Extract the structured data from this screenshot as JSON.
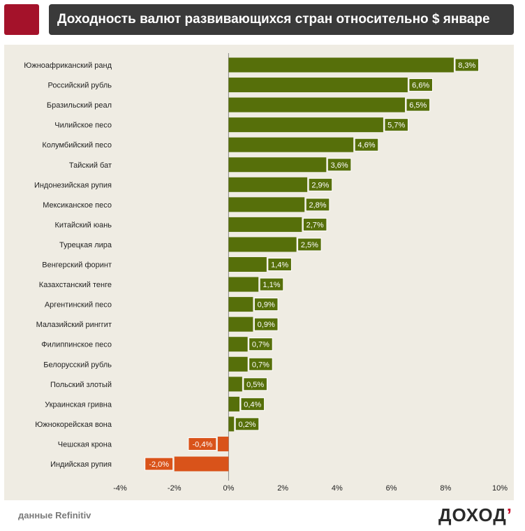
{
  "header": {
    "title": "Доходность валют развивающихся стран относительно $ январе"
  },
  "footer": {
    "source": "данные Refinitiv",
    "logo_main": "ДОХОД",
    "logo_accent": "’"
  },
  "colors": {
    "brand": "#a4122a",
    "title_bg": "#3a3a3a",
    "panel_bg": "#efece3",
    "positive": "#566f0a",
    "negative": "#d9531a"
  },
  "chart_data": {
    "type": "bar",
    "orientation": "horizontal",
    "categories": [
      "Южноафриканский  ранд",
      "Российский рубль",
      "Бразильский реал",
      "Чилийское песо",
      "Колумбийский песо",
      "Тайский бат",
      "Индонезийская рупия",
      "Мексиканское песо",
      "Китайский юань",
      "Турецкая лира",
      "Венгерский форинт",
      "Казахстанский тенге",
      "Аргентинский песо",
      "Малазийский ринггит",
      "Филиппинское песо",
      "Белорусский рубль",
      "Польский злотый",
      "Украинская гривна",
      "Южнокорейская вона",
      "Чешская крона",
      "Индийская рупия"
    ],
    "values": [
      8.3,
      6.6,
      6.5,
      5.7,
      4.6,
      3.6,
      2.9,
      2.8,
      2.7,
      2.5,
      1.4,
      1.1,
      0.9,
      0.9,
      0.7,
      0.7,
      0.5,
      0.4,
      0.2,
      -0.4,
      -2.0
    ],
    "data_labels": [
      "8,3%",
      "6,6%",
      "6,5%",
      "5,7%",
      "4,6%",
      "3,6%",
      "2,9%",
      "2,8%",
      "2,7%",
      "2,5%",
      "1,4%",
      "1,1%",
      "0,9%",
      "0,9%",
      "0,7%",
      "0,7%",
      "0,5%",
      "0,4%",
      "0,2%",
      "-0,4%",
      "-2,0%"
    ],
    "xlim": [
      -4,
      10
    ],
    "xticks": [
      -4,
      -2,
      0,
      2,
      4,
      6,
      8,
      10
    ],
    "xtick_labels": [
      "-4%",
      "-2%",
      "0%",
      "2%",
      "4%",
      "6%",
      "8%",
      "10%"
    ],
    "grid": false,
    "title": "Доходность валют развивающихся стран относительно $ январе",
    "xlabel": "",
    "ylabel": ""
  }
}
